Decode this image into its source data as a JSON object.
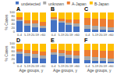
{
  "chart_data": [
    {
      "type": "bar",
      "title": "A",
      "stacked": true,
      "grid": false,
      "tick_labels": true,
      "ylabel": "% Cases",
      "categories": [
        "0-4",
        "5-19",
        "20-59",
        ">60"
      ],
      "series": [
        {
          "name": "undetected",
          "color": "#4472C4",
          "values": [
            55,
            32,
            26,
            20
          ]
        },
        {
          "name": "unknown",
          "color": "#A9A9A9",
          "values": [
            8,
            12,
            18,
            12
          ]
        },
        {
          "name": "A-Japan",
          "color": "#ED7D31",
          "values": [
            12,
            16,
            18,
            22
          ]
        },
        {
          "name": "B-Japan",
          "color": "#FFC000",
          "values": [
            25,
            40,
            38,
            46
          ]
        }
      ],
      "ylim": [
        0,
        100
      ],
      "yticks": [
        0,
        20,
        40,
        60,
        80,
        100
      ]
    },
    {
      "type": "bar",
      "title": "B",
      "stacked": true,
      "grid": false,
      "tick_labels": "x",
      "categories": [
        "0-4",
        "5-19",
        "20-59",
        ">60"
      ],
      "series": [
        {
          "name": "undetected",
          "color": "#4472C4",
          "values": [
            60,
            48,
            35,
            27
          ]
        },
        {
          "name": "unknown",
          "color": "#A9A9A9",
          "values": [
            8,
            10,
            15,
            18
          ]
        },
        {
          "name": "A-Japan",
          "color": "#ED7D31",
          "values": [
            7,
            10,
            13,
            18
          ]
        },
        {
          "name": "B-Japan",
          "color": "#FFC000",
          "values": [
            25,
            32,
            37,
            37
          ]
        }
      ],
      "ylim": [
        0,
        100
      ],
      "yticks": [
        0,
        20,
        40,
        60,
        80,
        100
      ]
    },
    {
      "type": "bar",
      "title": "C",
      "stacked": true,
      "grid": false,
      "tick_labels": "x",
      "categories": [
        "0-4",
        "5-19",
        "20-59",
        ">60"
      ],
      "series": [
        {
          "name": "undetected",
          "color": "#4472C4",
          "values": [
            18,
            14,
            12,
            10
          ]
        },
        {
          "name": "unknown",
          "color": "#A9A9A9",
          "values": [
            18,
            20,
            18,
            16
          ]
        },
        {
          "name": "A-Japan",
          "color": "#ED7D31",
          "values": [
            37,
            35,
            37,
            39
          ]
        },
        {
          "name": "B-Japan",
          "color": "#FFC000",
          "values": [
            27,
            31,
            33,
            35
          ]
        }
      ],
      "ylim": [
        0,
        100
      ],
      "yticks": [
        0,
        20,
        40,
        60,
        80,
        100
      ]
    },
    {
      "type": "bar",
      "title": "D",
      "stacked": true,
      "grid": false,
      "tick_labels": true,
      "ylabel": "% Cases",
      "xlabel": "Age groups, y",
      "categories": [
        "0-4",
        "5-19",
        "20-59",
        ">60"
      ],
      "series": [
        {
          "name": "undetected",
          "color": "#4472C4",
          "values": [
            50,
            36,
            30,
            24
          ]
        },
        {
          "name": "unknown",
          "color": "#A9A9A9",
          "values": [
            12,
            16,
            18,
            18
          ]
        },
        {
          "name": "A-Japan",
          "color": "#ED7D31",
          "values": [
            12,
            16,
            16,
            20
          ]
        },
        {
          "name": "B-Japan",
          "color": "#FFC000",
          "values": [
            26,
            32,
            36,
            38
          ]
        }
      ],
      "ylim": [
        0,
        100
      ],
      "yticks": [
        0,
        20,
        40,
        60,
        80,
        100
      ]
    },
    {
      "type": "bar",
      "title": "E",
      "stacked": true,
      "grid": false,
      "tick_labels": "x",
      "xlabel": "Age groups, y",
      "categories": [
        "0-4",
        "5-19",
        "20-59",
        ">60"
      ],
      "series": [
        {
          "name": "undetected",
          "color": "#4472C4",
          "values": [
            44,
            38,
            30,
            24
          ]
        },
        {
          "name": "unknown",
          "color": "#A9A9A9",
          "values": [
            12,
            14,
            16,
            18
          ]
        },
        {
          "name": "A-Japan",
          "color": "#ED7D31",
          "values": [
            18,
            18,
            20,
            22
          ]
        },
        {
          "name": "B-Japan",
          "color": "#FFC000",
          "values": [
            26,
            30,
            34,
            36
          ]
        }
      ],
      "ylim": [
        0,
        100
      ],
      "yticks": [
        0,
        20,
        40,
        60,
        80,
        100
      ]
    },
    {
      "type": "bar",
      "title": "F",
      "stacked": true,
      "grid": false,
      "tick_labels": "x",
      "xlabel": "Age groups, y",
      "categories": [
        "0-4",
        "5-19",
        "20-59",
        ">60"
      ],
      "series": [
        {
          "name": "undetected",
          "color": "#4472C4",
          "values": [
            16,
            12,
            12,
            9
          ]
        },
        {
          "name": "unknown",
          "color": "#A9A9A9",
          "values": [
            20,
            20,
            18,
            16
          ]
        },
        {
          "name": "A-Japan",
          "color": "#ED7D31",
          "values": [
            34,
            36,
            36,
            38
          ]
        },
        {
          "name": "B-Japan",
          "color": "#FFC000",
          "values": [
            30,
            32,
            34,
            37
          ]
        }
      ],
      "ylim": [
        0,
        100
      ],
      "yticks": [
        0,
        20,
        40,
        60,
        80,
        100
      ]
    }
  ]
}
